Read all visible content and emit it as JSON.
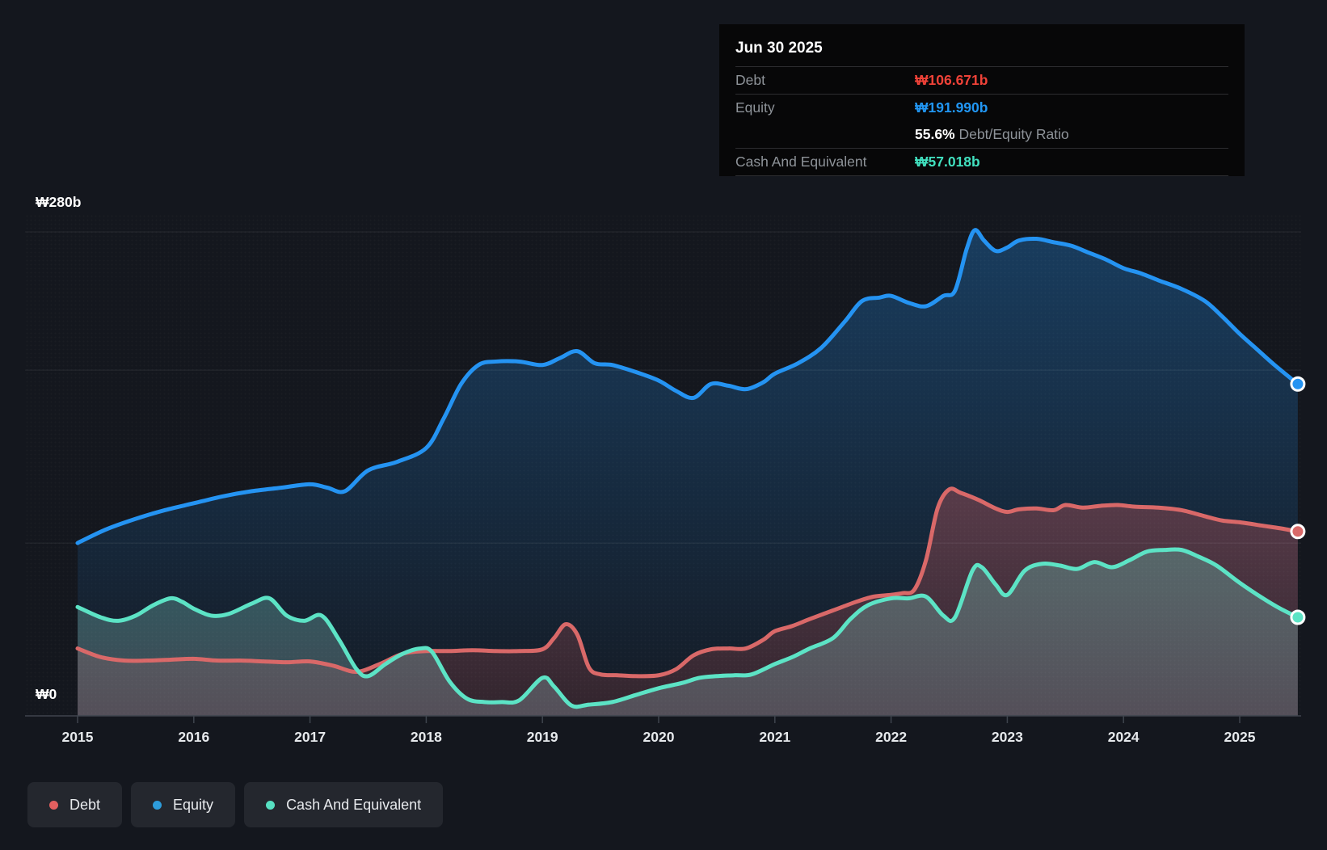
{
  "y_axis": {
    "top_label": "₩280b",
    "zero_label": "₩0",
    "max_value": 280,
    "gridline_values": [
      280,
      200,
      100,
      0
    ]
  },
  "x_axis": {
    "years": [
      "2015",
      "2016",
      "2017",
      "2018",
      "2019",
      "2020",
      "2021",
      "2022",
      "2023",
      "2024",
      "2025"
    ]
  },
  "tooltip": {
    "date": "Jun 30 2025",
    "debt": {
      "label": "Debt",
      "value": "₩106.671b"
    },
    "equity": {
      "label": "Equity",
      "value": "₩191.990b"
    },
    "ratio": {
      "value": "55.6%",
      "label": " Debt/Equity Ratio"
    },
    "cash": {
      "label": "Cash And Equivalent",
      "value": "₩57.018b"
    }
  },
  "legend": [
    {
      "key": "debt",
      "label": "Debt",
      "color": "#e25f5f"
    },
    {
      "key": "equity",
      "label": "Equity",
      "color": "#2d9cdb"
    },
    {
      "key": "cash",
      "label": "Cash And Equivalent",
      "color": "#57e0c2"
    }
  ],
  "colors": {
    "debt_line": "#d96868",
    "debt_text": "#f04238",
    "equity_line": "#2493f2",
    "equity_text": "#2196f3",
    "cash_line": "#5ce3c5",
    "cash_text": "#41e0bf",
    "grid": "rgba(255,255,255,0.08)",
    "axis": "#3e444d",
    "marker_ring": "#ffffff"
  },
  "chart_data": {
    "type": "area",
    "x_range": [
      2015,
      2025.5
    ],
    "y_range": [
      0,
      280
    ],
    "y_unit": "₩ billions",
    "grid": true,
    "legend_position": "bottom-left",
    "last_point_date": "Jun 30 2025",
    "series": [
      {
        "key": "equity",
        "name": "Equity",
        "points": [
          [
            2015.0,
            100
          ],
          [
            2015.25,
            108
          ],
          [
            2015.5,
            114
          ],
          [
            2015.75,
            119
          ],
          [
            2016.0,
            123
          ],
          [
            2016.25,
            127
          ],
          [
            2016.5,
            130
          ],
          [
            2016.75,
            132
          ],
          [
            2017.0,
            134
          ],
          [
            2017.15,
            132
          ],
          [
            2017.3,
            130
          ],
          [
            2017.5,
            142
          ],
          [
            2017.75,
            147
          ],
          [
            2018.0,
            155
          ],
          [
            2018.15,
            172
          ],
          [
            2018.3,
            192
          ],
          [
            2018.45,
            203
          ],
          [
            2018.6,
            205
          ],
          [
            2018.8,
            205
          ],
          [
            2019.0,
            203
          ],
          [
            2019.15,
            207
          ],
          [
            2019.3,
            211
          ],
          [
            2019.45,
            204
          ],
          [
            2019.6,
            203
          ],
          [
            2019.8,
            199
          ],
          [
            2020.0,
            194
          ],
          [
            2020.15,
            188
          ],
          [
            2020.3,
            184
          ],
          [
            2020.45,
            192
          ],
          [
            2020.6,
            191
          ],
          [
            2020.75,
            189
          ],
          [
            2020.9,
            193
          ],
          [
            2021.0,
            198
          ],
          [
            2021.2,
            204
          ],
          [
            2021.4,
            213
          ],
          [
            2021.6,
            228
          ],
          [
            2021.75,
            240
          ],
          [
            2021.9,
            242
          ],
          [
            2022.0,
            243
          ],
          [
            2022.15,
            239
          ],
          [
            2022.3,
            237
          ],
          [
            2022.45,
            243
          ],
          [
            2022.55,
            246
          ],
          [
            2022.65,
            270
          ],
          [
            2022.72,
            281
          ],
          [
            2022.8,
            275
          ],
          [
            2022.9,
            269
          ],
          [
            2023.0,
            271
          ],
          [
            2023.1,
            275
          ],
          [
            2023.25,
            276
          ],
          [
            2023.4,
            274
          ],
          [
            2023.55,
            272
          ],
          [
            2023.7,
            268
          ],
          [
            2023.85,
            264
          ],
          [
            2024.0,
            259
          ],
          [
            2024.15,
            256
          ],
          [
            2024.3,
            252
          ],
          [
            2024.5,
            247
          ],
          [
            2024.7,
            240
          ],
          [
            2024.85,
            231
          ],
          [
            2025.0,
            221
          ],
          [
            2025.15,
            212
          ],
          [
            2025.3,
            203
          ],
          [
            2025.5,
            191.99
          ]
        ]
      },
      {
        "key": "debt",
        "name": "Debt",
        "points": [
          [
            2015.0,
            39
          ],
          [
            2015.2,
            34
          ],
          [
            2015.4,
            32
          ],
          [
            2015.6,
            32
          ],
          [
            2015.8,
            32.5
          ],
          [
            2016.0,
            33
          ],
          [
            2016.2,
            32
          ],
          [
            2016.4,
            32
          ],
          [
            2016.6,
            31.5
          ],
          [
            2016.8,
            31
          ],
          [
            2017.0,
            31.5
          ],
          [
            2017.2,
            29
          ],
          [
            2017.4,
            25.5
          ],
          [
            2017.6,
            30
          ],
          [
            2017.8,
            36
          ],
          [
            2018.0,
            37.5
          ],
          [
            2018.2,
            37.5
          ],
          [
            2018.4,
            38
          ],
          [
            2018.6,
            37.5
          ],
          [
            2018.8,
            37.5
          ],
          [
            2019.0,
            38.5
          ],
          [
            2019.1,
            45
          ],
          [
            2019.2,
            53
          ],
          [
            2019.3,
            47
          ],
          [
            2019.4,
            28
          ],
          [
            2019.5,
            24
          ],
          [
            2019.65,
            23.5
          ],
          [
            2019.8,
            23
          ],
          [
            2020.0,
            23.5
          ],
          [
            2020.15,
            27
          ],
          [
            2020.3,
            35
          ],
          [
            2020.45,
            38.5
          ],
          [
            2020.6,
            39
          ],
          [
            2020.75,
            39
          ],
          [
            2020.9,
            44
          ],
          [
            2021.0,
            49
          ],
          [
            2021.15,
            52
          ],
          [
            2021.3,
            56
          ],
          [
            2021.5,
            61
          ],
          [
            2021.7,
            66
          ],
          [
            2021.85,
            69
          ],
          [
            2022.0,
            70
          ],
          [
            2022.1,
            71
          ],
          [
            2022.2,
            73
          ],
          [
            2022.3,
            90
          ],
          [
            2022.4,
            120
          ],
          [
            2022.5,
            131
          ],
          [
            2022.6,
            129
          ],
          [
            2022.75,
            125
          ],
          [
            2022.9,
            120
          ],
          [
            2023.0,
            118
          ],
          [
            2023.1,
            119.5
          ],
          [
            2023.25,
            120
          ],
          [
            2023.4,
            119
          ],
          [
            2023.5,
            122
          ],
          [
            2023.65,
            120.5
          ],
          [
            2023.8,
            121.5
          ],
          [
            2023.95,
            122
          ],
          [
            2024.1,
            121
          ],
          [
            2024.3,
            120.5
          ],
          [
            2024.5,
            119
          ],
          [
            2024.7,
            115.5
          ],
          [
            2024.85,
            113
          ],
          [
            2025.0,
            112
          ],
          [
            2025.2,
            110
          ],
          [
            2025.35,
            108.5
          ],
          [
            2025.5,
            106.671
          ]
        ]
      },
      {
        "key": "cash",
        "name": "Cash And Equivalent",
        "points": [
          [
            2015.0,
            63
          ],
          [
            2015.2,
            57
          ],
          [
            2015.35,
            55
          ],
          [
            2015.5,
            58
          ],
          [
            2015.65,
            64
          ],
          [
            2015.8,
            68
          ],
          [
            2015.9,
            66
          ],
          [
            2016.0,
            62
          ],
          [
            2016.15,
            58
          ],
          [
            2016.3,
            59
          ],
          [
            2016.5,
            65
          ],
          [
            2016.65,
            68
          ],
          [
            2016.8,
            58
          ],
          [
            2016.95,
            55
          ],
          [
            2017.1,
            58
          ],
          [
            2017.25,
            44
          ],
          [
            2017.4,
            27
          ],
          [
            2017.5,
            23
          ],
          [
            2017.65,
            30
          ],
          [
            2017.8,
            36
          ],
          [
            2017.95,
            39
          ],
          [
            2018.05,
            37
          ],
          [
            2018.2,
            20
          ],
          [
            2018.35,
            10
          ],
          [
            2018.5,
            8
          ],
          [
            2018.65,
            8
          ],
          [
            2018.8,
            9
          ],
          [
            2019.0,
            22
          ],
          [
            2019.1,
            17
          ],
          [
            2019.25,
            6
          ],
          [
            2019.4,
            6.5
          ],
          [
            2019.6,
            8
          ],
          [
            2019.8,
            12
          ],
          [
            2020.0,
            16
          ],
          [
            2020.2,
            19
          ],
          [
            2020.35,
            22
          ],
          [
            2020.5,
            23
          ],
          [
            2020.65,
            23.5
          ],
          [
            2020.8,
            24
          ],
          [
            2021.0,
            30
          ],
          [
            2021.15,
            34
          ],
          [
            2021.3,
            39
          ],
          [
            2021.5,
            45
          ],
          [
            2021.65,
            56
          ],
          [
            2021.8,
            64
          ],
          [
            2022.0,
            68
          ],
          [
            2022.15,
            68
          ],
          [
            2022.3,
            69
          ],
          [
            2022.45,
            58
          ],
          [
            2022.55,
            57
          ],
          [
            2022.7,
            84
          ],
          [
            2022.78,
            86
          ],
          [
            2022.9,
            76
          ],
          [
            2023.0,
            70
          ],
          [
            2023.15,
            84
          ],
          [
            2023.3,
            88
          ],
          [
            2023.45,
            87
          ],
          [
            2023.6,
            85
          ],
          [
            2023.75,
            89
          ],
          [
            2023.9,
            86
          ],
          [
            2024.05,
            90
          ],
          [
            2024.2,
            95
          ],
          [
            2024.35,
            96
          ],
          [
            2024.5,
            96
          ],
          [
            2024.65,
            92
          ],
          [
            2024.8,
            87
          ],
          [
            2025.0,
            77
          ],
          [
            2025.2,
            68
          ],
          [
            2025.35,
            62
          ],
          [
            2025.5,
            57.018
          ]
        ]
      }
    ]
  }
}
